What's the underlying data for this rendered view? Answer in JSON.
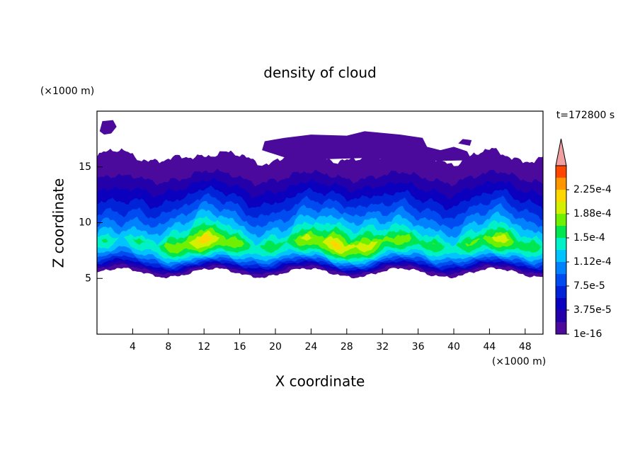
{
  "chart_data": {
    "type": "contour",
    "title": "density of cloud",
    "x_label": "X coordinate",
    "y_label": "Z coordinate",
    "x_unit": "(×1000 m)",
    "y_unit": "(×1000 m)",
    "time_label": "t=172800 s",
    "xlim": [
      0,
      50
    ],
    "ylim": [
      0,
      20
    ],
    "xticks": [
      4,
      8,
      12,
      16,
      20,
      24,
      28,
      32,
      36,
      40,
      44,
      48
    ],
    "yticks": [
      5,
      10,
      15
    ],
    "colorbar": {
      "clim": [
        1e-16,
        0.0002625
      ],
      "ticks": [
        {
          "value": 1e-16,
          "label": "1e-16"
        },
        {
          "value": 3.75e-05,
          "label": "3.75e-5"
        },
        {
          "value": 7.5e-05,
          "label": "7.5e-5"
        },
        {
          "value": 0.0001125,
          "label": "1.12e-4"
        },
        {
          "value": 0.00015,
          "label": "1.5e-4"
        },
        {
          "value": 0.0001875,
          "label": "1.88e-4"
        },
        {
          "value": 0.000225,
          "label": "2.25e-4"
        }
      ],
      "colors": [
        "#4b0a9b",
        "#2300aa",
        "#0a00be",
        "#0023d7",
        "#004bf0",
        "#0082ff",
        "#00c3ff",
        "#00f0c8",
        "#00e650",
        "#6ef000",
        "#d2f000",
        "#ffd700",
        "#ff9600",
        "#ff4600"
      ],
      "extend_color": "#f0a0a0"
    }
  }
}
